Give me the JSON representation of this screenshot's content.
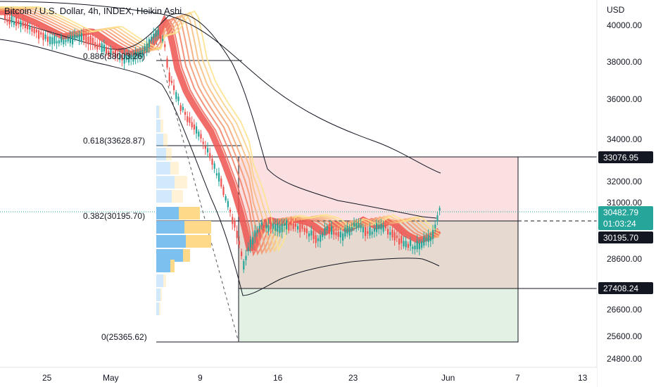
{
  "chart_title": "Bitcoin / U.S. Dollar, 4h, INDEX, Heikin Ashi",
  "currency": "USD",
  "y_axis_labels": [
    "40000.00",
    "38000.00",
    "36000.00",
    "34000.00",
    "32000.00",
    "31000.00",
    "28600.00",
    "26600.00",
    "25600.00",
    "24800.00"
  ],
  "x_axis_labels": [
    "25",
    "May",
    "9",
    "16",
    "23",
    "Jun",
    "7",
    "13"
  ],
  "fib_levels": [
    {
      "label": "0.886(38003.26)"
    },
    {
      "label": "0.618(33628.87)"
    },
    {
      "label": "0.382(30195.70)"
    },
    {
      "label": "0(25365.62)"
    }
  ],
  "price_tags": {
    "stop": "33076.95",
    "current_price": "30482.79",
    "countdown": "01:03:24",
    "entry": "30195.70",
    "target": "27408.24"
  },
  "colors": {
    "up_candle": "#26a69a",
    "down_candle": "#ef5350",
    "loss_zone": "#f9c9cc",
    "profit_zone": "#d6ecd8",
    "entry_zone": "#d9c6b8",
    "current_price_tag": "#26a69a",
    "volume_profile_up": "#7cc0f0",
    "volume_profile_down": "#ffd98a"
  },
  "chart_data": {
    "type": "candlestick",
    "style": "Heikin Ashi",
    "interval": "4h",
    "y_axis_labels": [
      "40000.00",
      "38000.00",
      "36000.00",
      "34000.00",
      "32000.00",
      "31000.00",
      "28600.00",
      "26600.00",
      "25600.00",
      "24800.00"
    ],
    "x_axis_labels": [
      "25",
      "May",
      "9",
      "16",
      "23",
      "Jun",
      "7",
      "13"
    ],
    "fibonacci": [
      {
        "ratio": 0.886,
        "price": 38003.26
      },
      {
        "ratio": 0.618,
        "price": 33628.87
      },
      {
        "ratio": 0.382,
        "price": 30195.7
      },
      {
        "ratio": 0,
        "price": 25365.62
      }
    ],
    "position": {
      "stop": 33076.95,
      "entry": 30195.7,
      "target": 27408.24
    },
    "last_price": 30482.79
  }
}
